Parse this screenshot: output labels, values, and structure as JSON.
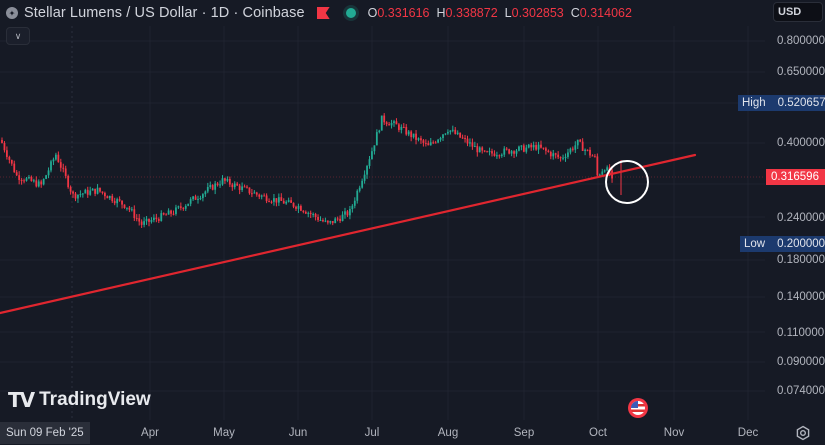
{
  "header": {
    "title": "Stellar Lumens / US Dollar · 1D · Coinbase",
    "symbol_icon": "stellar-logo-icon",
    "flag_icon": "flag-icon",
    "status_icon": "market-status-dot-icon",
    "ohlc": [
      {
        "key": "O",
        "value": "0.331616"
      },
      {
        "key": "H",
        "value": "0.338872"
      },
      {
        "key": "L",
        "value": "0.302853"
      },
      {
        "key": "C",
        "value": "0.314062"
      }
    ],
    "collapse_icon": "chevron-down-icon"
  },
  "price_axis": {
    "currency": "USD",
    "labels": [
      "0.800000",
      "0.650000",
      "0.400000",
      "0.240000",
      "0.180000",
      "0.140000",
      "0.110000",
      "0.090000",
      "0.074000"
    ],
    "high_label": "High",
    "high_value": "0.520657",
    "low_label": "Low",
    "low_value": "0.200000",
    "last_price": "0.316596"
  },
  "time_axis": {
    "cursor_date": "Sun 09 Feb '25",
    "labels": [
      "Apr",
      "May",
      "Jun",
      "Jul",
      "Aug",
      "Sep",
      "Oct",
      "Nov",
      "Dec"
    ]
  },
  "branding": {
    "logo_text": "TradingView",
    "logo_mark": "TV"
  },
  "colors": {
    "background": "#161a25",
    "up": "#22ab94",
    "down": "#f23645",
    "trendline": "#e0262f",
    "high_low_tag": "#1c3a6e",
    "grid": "#1f2330"
  },
  "chart_data": {
    "type": "candlestick",
    "title": "Stellar Lumens / US Dollar · 1D · Coinbase",
    "xlabel": "",
    "ylabel": "USD",
    "y_scale": "log",
    "ylim": [
      0.07,
      0.9
    ],
    "x_ticks": [
      "Apr",
      "May",
      "Jun",
      "Jul",
      "Aug",
      "Sep",
      "Oct",
      "Nov",
      "Dec"
    ],
    "y_ticks": [
      0.8,
      0.65,
      0.4,
      0.24,
      0.18,
      0.14,
      0.11,
      0.09,
      0.074
    ],
    "grid": true,
    "last_ohlc": {
      "open": 0.331616,
      "high": 0.338872,
      "low": 0.302853,
      "close": 0.314062
    },
    "last_price": 0.316596,
    "visible_high": 0.520657,
    "visible_low": 0.2,
    "approx_close_path": [
      {
        "date": "2025-02-09",
        "close": 0.4
      },
      {
        "date": "2025-02-15",
        "close": 0.32
      },
      {
        "date": "2025-02-25",
        "close": 0.3
      },
      {
        "date": "2025-03-03",
        "close": 0.37
      },
      {
        "date": "2025-03-10",
        "close": 0.28
      },
      {
        "date": "2025-03-20",
        "close": 0.29
      },
      {
        "date": "2025-04-01",
        "close": 0.26
      },
      {
        "date": "2025-04-07",
        "close": 0.23
      },
      {
        "date": "2025-04-20",
        "close": 0.25
      },
      {
        "date": "2025-05-10",
        "close": 0.31
      },
      {
        "date": "2025-05-25",
        "close": 0.28
      },
      {
        "date": "2025-06-10",
        "close": 0.26
      },
      {
        "date": "2025-06-22",
        "close": 0.23
      },
      {
        "date": "2025-07-01",
        "close": 0.25
      },
      {
        "date": "2025-07-10",
        "close": 0.38
      },
      {
        "date": "2025-07-14",
        "close": 0.47
      },
      {
        "date": "2025-07-20",
        "close": 0.45
      },
      {
        "date": "2025-08-02",
        "close": 0.39
      },
      {
        "date": "2025-08-10",
        "close": 0.44
      },
      {
        "date": "2025-08-25",
        "close": 0.37
      },
      {
        "date": "2025-09-05",
        "close": 0.38
      },
      {
        "date": "2025-09-15",
        "close": 0.39
      },
      {
        "date": "2025-09-25",
        "close": 0.36
      },
      {
        "date": "2025-10-02",
        "close": 0.4
      },
      {
        "date": "2025-10-09",
        "close": 0.36
      },
      {
        "date": "2025-10-10",
        "close": 0.32
      },
      {
        "date": "2025-10-13",
        "close": 0.34
      },
      {
        "date": "2025-10-16",
        "close": 0.314
      }
    ],
    "annotations": [
      {
        "type": "trendline",
        "color": "#e0262f",
        "from": {
          "date": "2025-02-09",
          "price": 0.124
        },
        "to": {
          "date": "2025-11-17",
          "price": 0.365
        }
      },
      {
        "type": "circle",
        "color": "#ffffff",
        "center": {
          "date": "2025-10-12",
          "price": 0.31
        },
        "note": "breakdown test of trendline"
      }
    ]
  }
}
